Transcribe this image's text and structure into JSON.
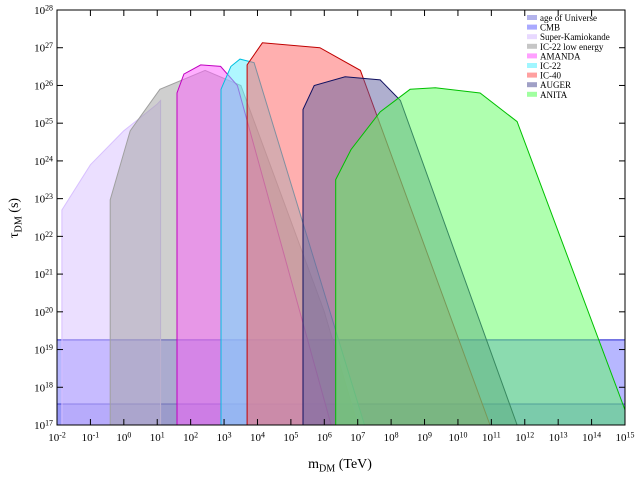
{
  "chart_data": {
    "type": "area",
    "xlabel": "m_DM (TeV)",
    "ylabel": "τ_DM (s)",
    "xscale": "log",
    "yscale": "log",
    "xlim": [
      0.01,
      1000000000000000.0
    ],
    "ylim": [
      1e+17,
      1e+28
    ],
    "xticks": [
      {
        "value": 0.01,
        "label": "10^-2"
      },
      {
        "value": 0.1,
        "label": "10^-1"
      },
      {
        "value": 1,
        "label": "10^0"
      },
      {
        "value": 10,
        "label": "10^1"
      },
      {
        "value": 100,
        "label": "10^2"
      },
      {
        "value": 1000,
        "label": "10^3"
      },
      {
        "value": 10000,
        "label": "10^4"
      },
      {
        "value": 100000,
        "label": "10^5"
      },
      {
        "value": 1000000,
        "label": "10^6"
      },
      {
        "value": 10000000.0,
        "label": "10^7"
      },
      {
        "value": 100000000.0,
        "label": "10^8"
      },
      {
        "value": 1000000000.0,
        "label": "10^9"
      },
      {
        "value": 10000000000.0,
        "label": "10^10"
      },
      {
        "value": 100000000000.0,
        "label": "10^11"
      },
      {
        "value": 1000000000000.0,
        "label": "10^12"
      },
      {
        "value": 10000000000000.0,
        "label": "10^13"
      },
      {
        "value": 100000000000000.0,
        "label": "10^14"
      },
      {
        "value": 1000000000000000.0,
        "label": "10^15"
      }
    ],
    "yticks": [
      {
        "value": 1e+17,
        "label": "10^17"
      },
      {
        "value": 1e+18,
        "label": "10^18"
      },
      {
        "value": 1e+19,
        "label": "10^19"
      },
      {
        "value": 1e+20,
        "label": "10^20"
      },
      {
        "value": 1e+21,
        "label": "10^21"
      },
      {
        "value": 1e+22,
        "label": "10^22"
      },
      {
        "value": 1e+23,
        "label": "10^23"
      },
      {
        "value": 1e+24,
        "label": "10^24"
      },
      {
        "value": 1e+25,
        "label": "10^25"
      },
      {
        "value": 1e+26,
        "label": "10^26"
      },
      {
        "value": 1e+27,
        "label": "10^27"
      },
      {
        "value": 1e+28,
        "label": "10^28"
      }
    ],
    "legend": "upper right",
    "series": [
      {
        "name": "age of Universe",
        "color": "#8080e0",
        "edgecolor": "#1010a0",
        "x": [
          0.01,
          1000000000000000.0,
          1000000000000000.0,
          0.01
        ],
        "y": [
          1e+17,
          1e+17,
          3.6e+17,
          3.6e+17
        ]
      },
      {
        "name": "CMB",
        "color": "#7070ff",
        "edgecolor": "#2020d0",
        "x": [
          0.01,
          1000000000000000.0,
          1000000000000000.0,
          0.01
        ],
        "y": [
          1e+17,
          1e+17,
          1.8e+19,
          1.8e+19
        ]
      },
      {
        "name": "Super-Kamiokande",
        "color": "#d8c0ff",
        "edgecolor": "#d8c0ff",
        "x": [
          0.014,
          0.014,
          0.1,
          1,
          10,
          12.6,
          12.6
        ],
        "y": [
          1e+17,
          5e+22,
          7.9e+23,
          6.3e+24,
          3.2e+25,
          4e+25,
          1e+17
        ]
      },
      {
        "name": "IC-22 low energy",
        "color": "#a0a0a0",
        "edgecolor": "#a0a0a0",
        "x": [
          0.39,
          0.39,
          1.55,
          12,
          270,
          3200,
          1000000,
          10000000.0
        ],
        "y": [
          1e+17,
          9.3e+22,
          6.3e+24,
          7.9e+25,
          2.5e+26,
          1e+26,
          1e+20,
          1e+17
        ]
      },
      {
        "name": "AMANDA",
        "color": "#ff60ff",
        "edgecolor": "#c000c0",
        "x": [
          39,
          39,
          63,
          200,
          790,
          2500,
          1600000
        ],
        "y": [
          1e+17,
          6.3e+25,
          2e+26,
          3.5e+26,
          3.2e+26,
          1e+26,
          1e+17
        ]
      },
      {
        "name": "IC-22",
        "color": "#60f0ff",
        "edgecolor": "#00c0e0",
        "x": [
          810,
          810,
          1600,
          3000,
          7900,
          16000000.0
        ],
        "y": [
          1e+17,
          7.9e+25,
          3.2e+26,
          5e+26,
          4e+26,
          1e+17
        ]
      },
      {
        "name": "IC-40",
        "color": "#ff6060",
        "edgecolor": "#c00000",
        "x": [
          4900,
          4900,
          14000,
          740000,
          12000000.0,
          91000000000.0
        ],
        "y": [
          1e+17,
          3.5e+26,
          1.35e+27,
          1e+27,
          2.5e+26,
          1e+17
        ]
      },
      {
        "name": "AUGER",
        "color": "#6060a0",
        "edgecolor": "#101060",
        "x": [
          230000,
          230000,
          500000,
          4200000,
          47000000.0,
          190000000.0,
          590000000000.0
        ],
        "y": [
          1e+17,
          2.3e+25,
          1e+26,
          1.7e+26,
          1.4e+26,
          4e+25,
          1e+17
        ]
      },
      {
        "name": "ANITA",
        "color": "#60ff60",
        "edgecolor": "#00c000",
        "x": [
          2200000,
          2200000,
          6300000,
          47000000.0,
          370000000.0,
          2100000000.0,
          46000000000.0,
          590000000000.0,
          1000000000000000.0,
          1000000000000000.0
        ],
        "y": [
          1e+17,
          3.2e+23,
          2e+24,
          2e+25,
          7.9e+25,
          8.7e+25,
          6.3e+25,
          1.1e+25,
          2.5e+17,
          1e+17
        ]
      }
    ]
  }
}
